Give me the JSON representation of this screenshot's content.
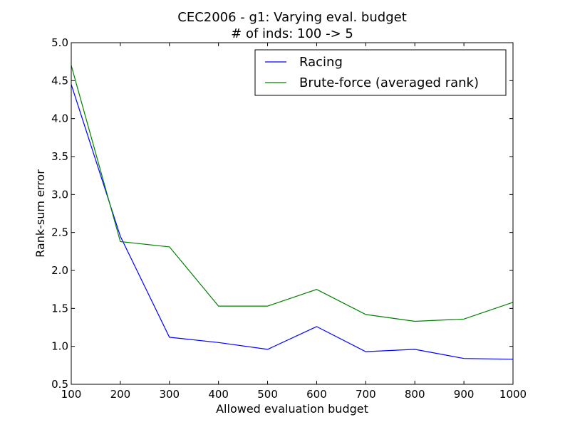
{
  "chart_data": {
    "type": "line",
    "title": "CEC2006 - g1: Varying eval. budget",
    "subtitle": "# of inds: 100 -> 5",
    "xlabel": "Allowed evaluation budget",
    "ylabel": "Rank-sum error",
    "xlim": [
      100,
      1000
    ],
    "ylim": [
      0.5,
      5.0
    ],
    "xticks": [
      "100",
      "200",
      "300",
      "400",
      "500",
      "600",
      "700",
      "800",
      "900",
      "1000"
    ],
    "yticks": [
      "0.5",
      "1.0",
      "1.5",
      "2.0",
      "2.5",
      "3.0",
      "3.5",
      "4.0",
      "4.5",
      "5.0"
    ],
    "grid": false,
    "legend_position": "top-right",
    "x": [
      100,
      200,
      300,
      400,
      500,
      600,
      700,
      800,
      900,
      1000
    ],
    "series": [
      {
        "name": "Racing",
        "color": "#0000ff",
        "values": [
          4.45,
          2.45,
          1.12,
          1.05,
          0.96,
          1.26,
          0.93,
          0.96,
          0.84,
          0.83
        ]
      },
      {
        "name": "Brute-force (averaged rank)",
        "color": "#008000",
        "values": [
          4.7,
          2.38,
          2.31,
          1.53,
          1.53,
          1.75,
          1.42,
          1.33,
          1.36,
          1.58
        ]
      }
    ]
  }
}
